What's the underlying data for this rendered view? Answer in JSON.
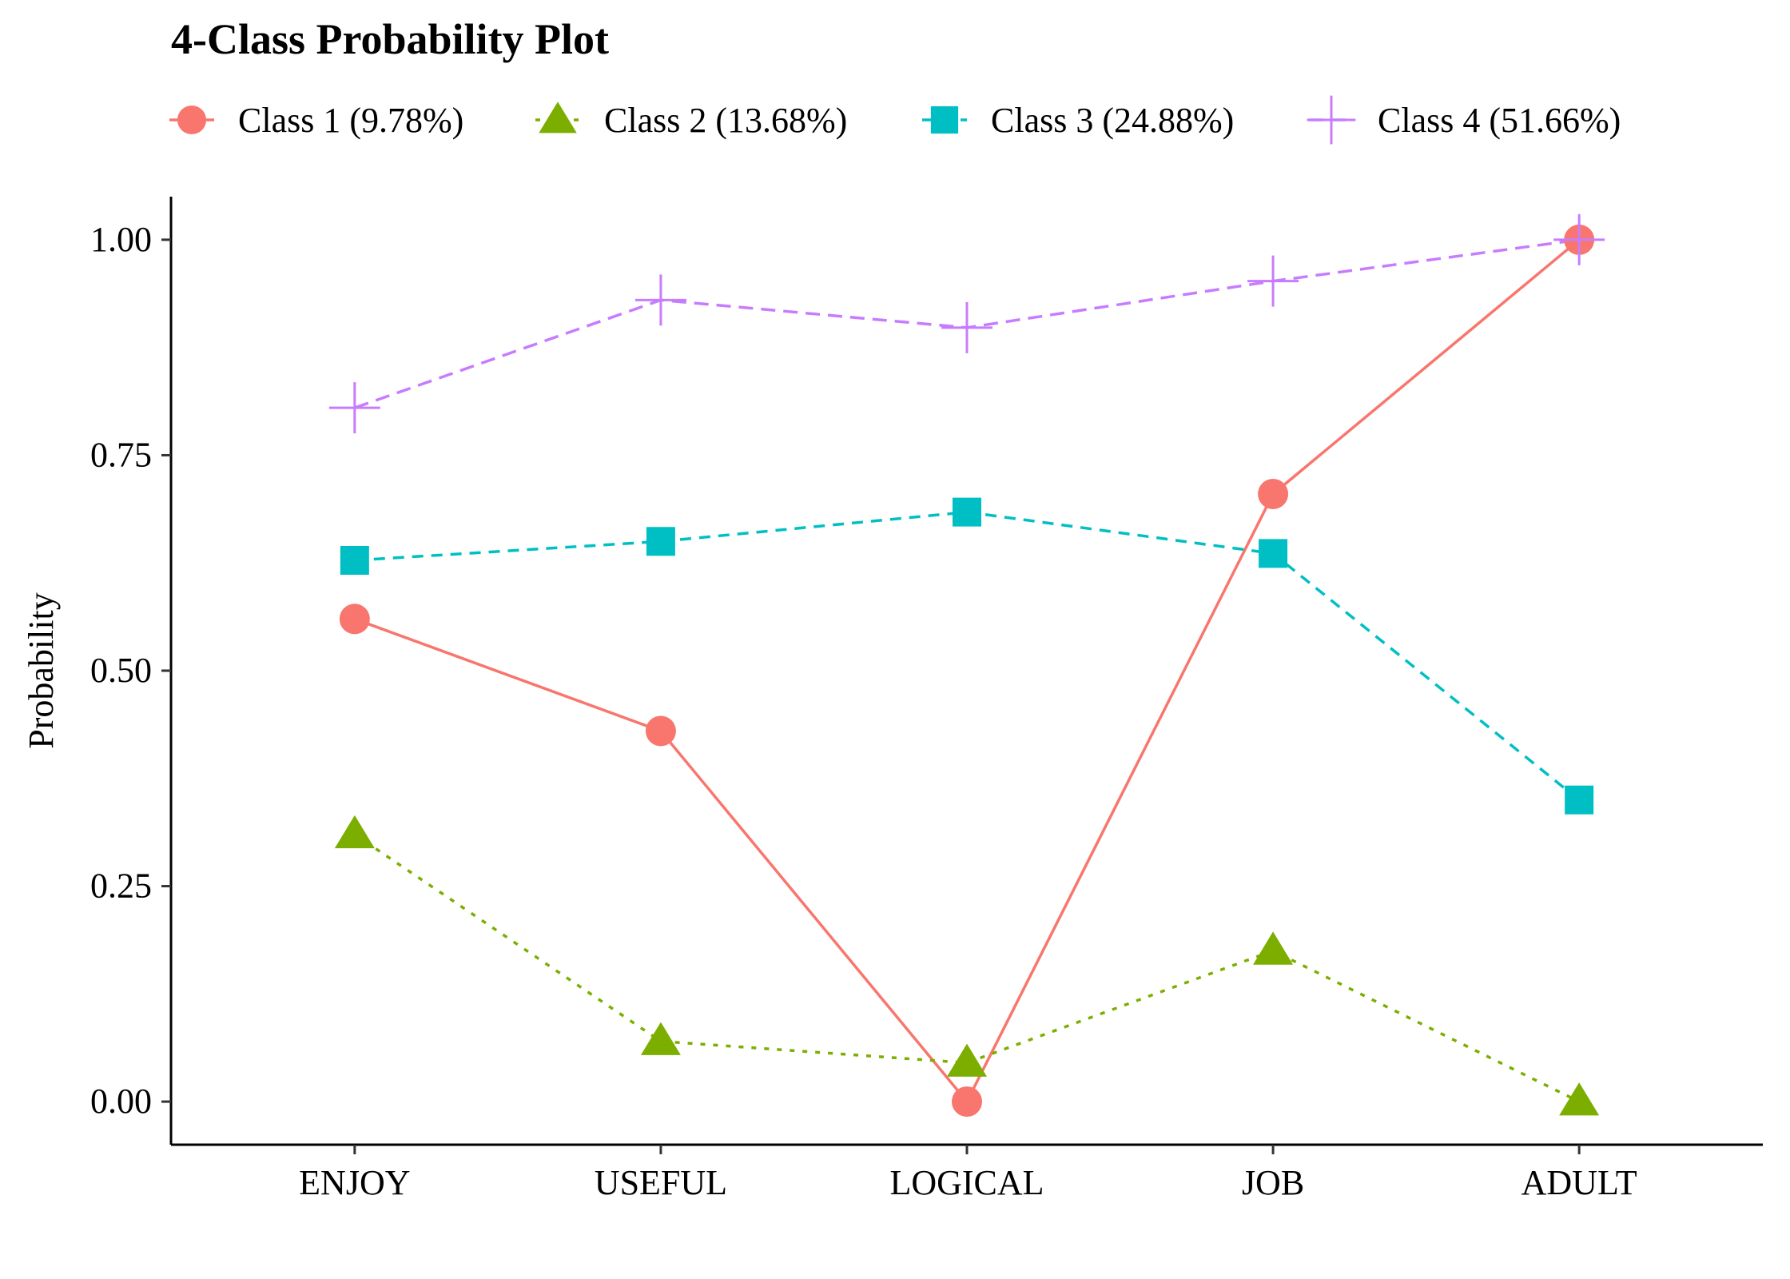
{
  "chart_data": {
    "type": "line",
    "title": "4-Class Probability Plot",
    "xlabel": "",
    "ylabel": "Probability",
    "categories": [
      "ENJOY",
      "USEFUL",
      "LOGICAL",
      "JOB",
      "ADULT"
    ],
    "ylim": [
      -0.05,
      1.05
    ],
    "yticks": [
      0.0,
      0.25,
      0.5,
      0.75,
      1.0
    ],
    "ytick_labels": [
      "0.00",
      "0.25",
      "0.50",
      "0.75",
      "1.00"
    ],
    "grid": false,
    "legend_position": "top-left",
    "series": [
      {
        "name": "Class 1 (9.78%)",
        "values": [
          0.56,
          0.43,
          0.0,
          0.705,
          1.0
        ],
        "color": "#F8766D",
        "marker": "circle",
        "line_style": "solid"
      },
      {
        "name": "Class 2 (13.68%)",
        "values": [
          0.31,
          0.07,
          0.045,
          0.175,
          0.0
        ],
        "color": "#7CAE00",
        "marker": "triangle",
        "line_style": "dotted"
      },
      {
        "name": "Class 3 (24.88%)",
        "values": [
          0.628,
          0.65,
          0.684,
          0.636,
          0.35
        ],
        "color": "#00BFC4",
        "marker": "square",
        "line_style": "dashed"
      },
      {
        "name": "Class 4 (51.66%)",
        "values": [
          0.805,
          0.93,
          0.898,
          0.952,
          1.0
        ],
        "color": "#C77CFF",
        "marker": "plus",
        "line_style": "longdash"
      }
    ]
  }
}
